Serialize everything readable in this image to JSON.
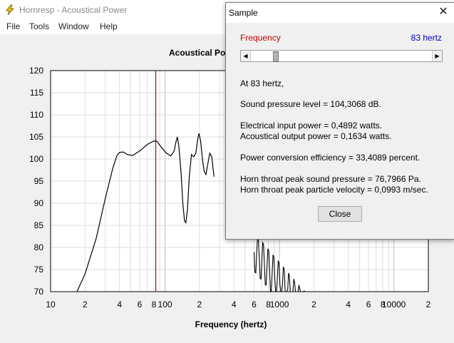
{
  "app": {
    "title": "Hornresp - Acoustical Power",
    "icon": "lightning-icon"
  },
  "menu": [
    "File",
    "Tools",
    "Window",
    "Help"
  ],
  "chart_data": {
    "type": "line",
    "title": "Acoustical Po",
    "xlabel": "Frequency (hertz)",
    "ylabel": "",
    "xscale": "log",
    "xlim": [
      10,
      20000
    ],
    "ylim": [
      70,
      120
    ],
    "yticks": [
      "120",
      "115",
      "110",
      "105",
      "100",
      "95",
      "90",
      "85",
      "80",
      "75",
      "70"
    ],
    "xtick_labels": [
      {
        "f": 10,
        "label": "10"
      },
      {
        "f": 20,
        "label": "2"
      },
      {
        "f": 40,
        "label": "4"
      },
      {
        "f": 60,
        "label": "6"
      },
      {
        "f": 80,
        "label": "8"
      },
      {
        "f": 100,
        "label": "100"
      },
      {
        "f": 200,
        "label": "2"
      },
      {
        "f": 400,
        "label": "4"
      },
      {
        "f": 600,
        "label": "6"
      },
      {
        "f": 800,
        "label": "8"
      },
      {
        "f": 1000,
        "label": "1000"
      },
      {
        "f": 2000,
        "label": "2"
      },
      {
        "f": 4000,
        "label": "4"
      },
      {
        "f": 6000,
        "label": "6"
      },
      {
        "f": 8000,
        "label": "8"
      },
      {
        "f": 10000,
        "label": "10000"
      },
      {
        "f": 20000,
        "label": "2"
      }
    ],
    "grid": true,
    "marker_frequency": 83,
    "marker_color": "#c00000",
    "series": [
      {
        "values": [
          [
            17,
            70
          ],
          [
            20,
            74
          ],
          [
            25,
            82
          ],
          [
            30,
            91
          ],
          [
            35,
            98
          ],
          [
            38,
            100.8
          ],
          [
            40,
            101.5
          ],
          [
            43,
            101.6
          ],
          [
            47,
            101
          ],
          [
            52,
            100.8
          ],
          [
            60,
            101.8
          ],
          [
            70,
            103.3
          ],
          [
            80,
            104.1
          ],
          [
            85,
            104
          ],
          [
            92,
            102.8
          ],
          [
            102,
            101.4
          ],
          [
            112,
            100.7
          ],
          [
            120,
            101.8
          ],
          [
            125,
            104
          ],
          [
            128,
            105
          ],
          [
            132,
            103
          ],
          [
            138,
            97
          ],
          [
            143,
            90
          ],
          [
            148,
            86
          ],
          [
            152,
            85.6
          ],
          [
            157,
            88.5
          ],
          [
            163,
            96
          ],
          [
            170,
            101
          ],
          [
            178,
            100.5
          ],
          [
            186,
            101.3
          ],
          [
            193,
            104.5
          ],
          [
            198,
            105.8
          ],
          [
            205,
            104
          ],
          [
            212,
            100
          ],
          [
            220,
            97.2
          ],
          [
            228,
            96.5
          ],
          [
            237,
            99
          ],
          [
            246,
            101.3
          ],
          [
            256,
            100.5
          ],
          [
            268,
            96
          ]
        ]
      }
    ]
  },
  "dialog": {
    "title": "Sample",
    "frequency_label": "Frequency",
    "frequency_value": "83 hertz",
    "slider_fraction": 0.125,
    "lines": {
      "at": "At 83 hertz,",
      "spl": "Sound pressure level = 104,3068 dB.",
      "elec": "Electrical input power = 0,4892 watts.",
      "acou": "Acoustical output power = 0,1634 watts.",
      "eff": "Power conversion efficiency = 33,4089 percent.",
      "throat_p": "Horn throat peak sound pressure = 76,7966 Pa.",
      "throat_v": "Horn throat peak particle velocity = 0,0993 m/sec."
    },
    "close_label": "Close"
  }
}
